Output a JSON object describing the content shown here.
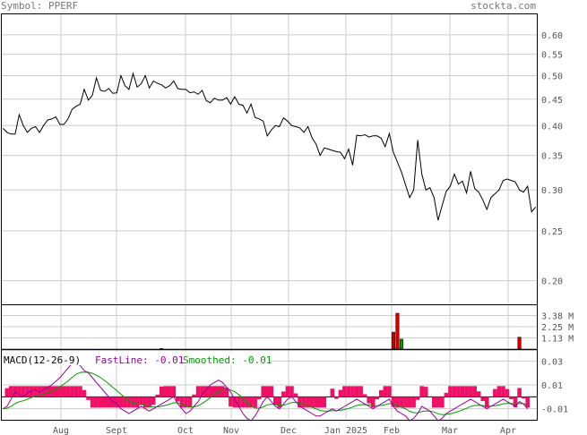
{
  "header": {
    "symbol_label": "Symbol: PPERF",
    "site": "stockta.com"
  },
  "chart_data": [
    {
      "type": "line",
      "name": "price",
      "scale": "log",
      "ylim": [
        0.18,
        0.66
      ],
      "yticks": [
        0.6,
        0.55,
        0.5,
        0.45,
        0.4,
        0.35,
        0.3,
        0.25,
        0.2
      ],
      "ytick_labels": [
        "0.60",
        "0.55",
        "0.50",
        "0.45",
        "0.40",
        "0.35",
        "0.30",
        "0.25",
        "0.20"
      ],
      "xticks": [
        "Aug",
        "Sept",
        "Oct",
        "Nov",
        "Dec",
        "Jan 2025",
        "Feb",
        "Mar",
        "Apr"
      ],
      "grid": true,
      "values": [
        0.395,
        0.388,
        0.385,
        0.385,
        0.42,
        0.4,
        0.388,
        0.395,
        0.398,
        0.388,
        0.4,
        0.41,
        0.412,
        0.416,
        0.402,
        0.402,
        0.412,
        0.43,
        0.436,
        0.44,
        0.47,
        0.448,
        0.458,
        0.495,
        0.468,
        0.466,
        0.472,
        0.462,
        0.463,
        0.5,
        0.478,
        0.47,
        0.505,
        0.475,
        0.482,
        0.5,
        0.473,
        0.488,
        0.483,
        0.48,
        0.473,
        0.478,
        0.488,
        0.472,
        0.47,
        0.47,
        0.463,
        0.465,
        0.46,
        0.468,
        0.447,
        0.443,
        0.452,
        0.448,
        0.448,
        0.453,
        0.44,
        0.455,
        0.44,
        0.438,
        0.423,
        0.44,
        0.415,
        0.412,
        0.408,
        0.382,
        0.392,
        0.4,
        0.398,
        0.414,
        0.408,
        0.4,
        0.398,
        0.396,
        0.388,
        0.398,
        0.379,
        0.368,
        0.35,
        0.362,
        0.36,
        0.358,
        0.356,
        0.355,
        0.345,
        0.36,
        0.335,
        0.383,
        0.382,
        0.384,
        0.38,
        0.382,
        0.382,
        0.378,
        0.364,
        0.386,
        0.355,
        0.34,
        0.325,
        0.307,
        0.29,
        0.3,
        0.375,
        0.322,
        0.3,
        0.303,
        0.29,
        0.262,
        0.28,
        0.298,
        0.305,
        0.322,
        0.308,
        0.312,
        0.296,
        0.326,
        0.302,
        0.297,
        0.287,
        0.275,
        0.29,
        0.295,
        0.3,
        0.313,
        0.315,
        0.313,
        0.311,
        0.3,
        0.297,
        0.305,
        0.272,
        0.278
      ]
    },
    {
      "type": "bar",
      "name": "volume",
      "ylim": [
        0,
        4.5
      ],
      "yticks": [
        3.38,
        2.25,
        1.13
      ],
      "ytick_labels": [
        "3.38 M",
        "2.25 M",
        "1.13 M"
      ],
      "bars": [
        {
          "index": 39,
          "value": 0.05,
          "color": "#cc0000"
        },
        {
          "index": 96,
          "value": 1.7,
          "color": "#cc0000"
        },
        {
          "index": 97,
          "value": 3.6,
          "color": "#cc0000"
        },
        {
          "index": 98,
          "value": 1.0,
          "color": "#009900"
        },
        {
          "index": 127,
          "value": 1.2,
          "color": "#cc0000"
        }
      ]
    },
    {
      "type": "line",
      "name": "macd",
      "title": "MACD(12-26-9)",
      "fastline_label": "FastLine: -0.01",
      "smoothed_label": "Smoothed: -0.01",
      "ylim": [
        -0.02,
        0.04
      ],
      "yticks": [
        0.03,
        0.01,
        -0.01
      ],
      "ytick_labels": [
        "0.03",
        "0.01",
        "-0.01"
      ],
      "zero_line": 0,
      "colors": {
        "fast": "#990099",
        "smoothed": "#009900",
        "hist": "#ee1166"
      },
      "fast": [
        -0.01,
        -0.008,
        -0.002,
        0.004,
        0.002,
        0.0,
        0.003,
        0.005,
        0.006,
        0.004,
        0.006,
        0.008,
        0.01,
        0.013,
        0.016,
        0.02,
        0.024,
        0.028,
        0.03,
        0.026,
        0.022,
        0.02,
        0.016,
        0.012,
        0.008,
        0.004,
        0.0,
        -0.004,
        -0.006,
        -0.01,
        -0.012,
        -0.014,
        -0.012,
        -0.01,
        -0.008,
        -0.01,
        -0.012,
        -0.01,
        -0.008,
        -0.006,
        -0.004,
        -0.002,
        0.0,
        -0.006,
        -0.01,
        -0.014,
        -0.012,
        -0.008,
        -0.004,
        0.002,
        0.006,
        0.01,
        0.012,
        0.014,
        0.012,
        0.008,
        0.004,
        -0.002,
        -0.008,
        -0.014,
        -0.018,
        -0.02,
        -0.016,
        -0.01,
        -0.004,
        0.0,
        -0.004,
        -0.008,
        -0.01,
        -0.006,
        -0.002,
        0.0,
        -0.004,
        -0.008,
        -0.01,
        -0.012,
        -0.014,
        -0.016,
        -0.016,
        -0.014,
        -0.012,
        -0.01,
        -0.012,
        -0.01,
        -0.008,
        -0.006,
        -0.004,
        -0.002,
        -0.004,
        -0.006,
        -0.008,
        -0.01,
        -0.008,
        -0.006,
        -0.004,
        -0.002,
        -0.008,
        -0.012,
        -0.014,
        -0.016,
        -0.02,
        -0.018,
        -0.014,
        -0.008,
        -0.01,
        -0.012,
        -0.016,
        -0.02,
        -0.018,
        -0.014,
        -0.012,
        -0.01,
        -0.008,
        -0.006,
        -0.004,
        -0.002,
        -0.004,
        -0.006,
        -0.008,
        -0.01,
        -0.008,
        -0.006,
        -0.004,
        -0.002,
        -0.004,
        -0.006,
        -0.008,
        -0.004,
        -0.006,
        -0.01
      ]
    }
  ]
}
